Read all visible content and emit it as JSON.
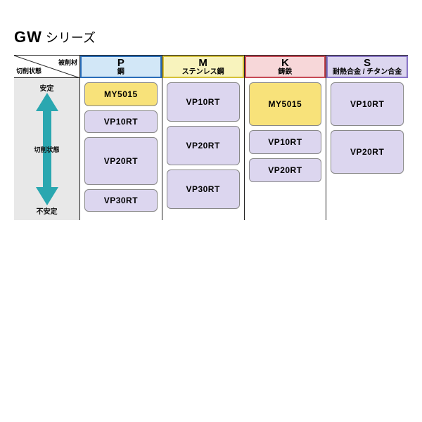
{
  "title": {
    "bold": "GW",
    "rest": " シリーズ"
  },
  "header": {
    "row_label": "切削状態",
    "col_label": "被削材"
  },
  "axis": {
    "top": "安定",
    "mid": "切削状態",
    "bottom": "不安定",
    "arrow_fill": "#2aa7b0",
    "axis_bg": "#e8e8e8"
  },
  "columns": [
    {
      "code": "P",
      "sub": "鋼",
      "bg": "#d2e7f7",
      "border": "#2a6db8",
      "items": [
        {
          "label": "MY5015",
          "color": "yellow",
          "h": 34
        },
        {
          "label": "VP10RT",
          "color": "violet",
          "h": 32
        },
        {
          "label": "VP20RT",
          "color": "violet",
          "h": 68
        },
        {
          "label": "VP30RT",
          "color": "violet",
          "h": 32
        }
      ]
    },
    {
      "code": "M",
      "sub": "ステンレス鋼",
      "bg": "#f8f3bd",
      "border": "#d6c13a",
      "items": [
        {
          "label": "VP10RT",
          "color": "violet",
          "h": 56
        },
        {
          "label": "VP20RT",
          "color": "violet",
          "h": 56
        },
        {
          "label": "VP30RT",
          "color": "violet",
          "h": 56
        }
      ]
    },
    {
      "code": "K",
      "sub": "鋳鉄",
      "bg": "#f7d7d9",
      "border": "#c74a56",
      "items": [
        {
          "label": "MY5015",
          "color": "yellow",
          "h": 62
        },
        {
          "label": "VP10RT",
          "color": "violet",
          "h": 34
        },
        {
          "label": "VP20RT",
          "color": "violet",
          "h": 34
        }
      ]
    },
    {
      "code": "S",
      "sub": "耐熱合金 / チタン合金",
      "bg": "#dcd6ef",
      "border": "#8a76c7",
      "items": [
        {
          "label": "VP10RT",
          "color": "violet",
          "h": 62
        },
        {
          "label": "VP20RT",
          "color": "violet",
          "h": 62
        }
      ]
    }
  ],
  "chip_colors": {
    "yellow": "#f8e27a",
    "violet": "#dcd6ef"
  },
  "body_height": 204
}
